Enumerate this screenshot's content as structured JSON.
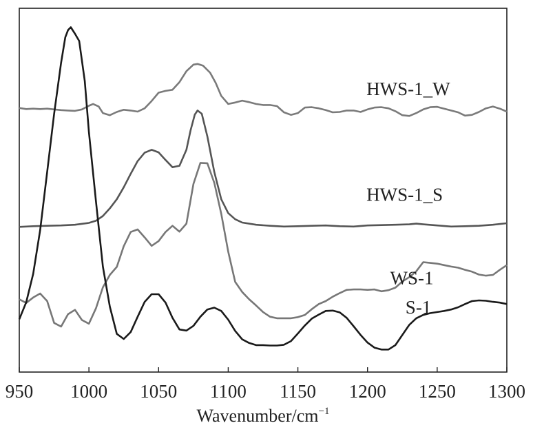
{
  "chart_data": {
    "type": "line",
    "xlabel": "Wavenumber/cm",
    "xlabel_superscript": "−1",
    "ylabel": "",
    "xlim": [
      950,
      1300
    ],
    "x_ticks": [
      950,
      1000,
      1050,
      1100,
      1150,
      1200,
      1250,
      1300
    ],
    "y_ticks": [],
    "grid": false,
    "legend": "none",
    "series": [
      {
        "name": "HWS-1_W",
        "color": "#7a7a7a",
        "label_at": [
          1045,
          0.78
        ],
        "points": [
          [
            950,
            0.726
          ],
          [
            955,
            0.723
          ],
          [
            960,
            0.724
          ],
          [
            965,
            0.723
          ],
          [
            970,
            0.724
          ],
          [
            975,
            0.722
          ],
          [
            980,
            0.72
          ],
          [
            985,
            0.719
          ],
          [
            990,
            0.718
          ],
          [
            995,
            0.722
          ],
          [
            1000,
            0.732
          ],
          [
            1003,
            0.737
          ],
          [
            1007,
            0.73
          ],
          [
            1010,
            0.712
          ],
          [
            1015,
            0.706
          ],
          [
            1020,
            0.715
          ],
          [
            1025,
            0.721
          ],
          [
            1030,
            0.719
          ],
          [
            1035,
            0.716
          ],
          [
            1040,
            0.725
          ],
          [
            1045,
            0.745
          ],
          [
            1050,
            0.768
          ],
          [
            1055,
            0.773
          ],
          [
            1060,
            0.776
          ],
          [
            1065,
            0.797
          ],
          [
            1070,
            0.827
          ],
          [
            1075,
            0.845
          ],
          [
            1078,
            0.847
          ],
          [
            1082,
            0.842
          ],
          [
            1087,
            0.823
          ],
          [
            1091,
            0.795
          ],
          [
            1095,
            0.759
          ],
          [
            1100,
            0.737
          ],
          [
            1105,
            0.741
          ],
          [
            1110,
            0.746
          ],
          [
            1115,
            0.742
          ],
          [
            1120,
            0.737
          ],
          [
            1125,
            0.734
          ],
          [
            1130,
            0.734
          ],
          [
            1135,
            0.731
          ],
          [
            1140,
            0.714
          ],
          [
            1145,
            0.707
          ],
          [
            1150,
            0.712
          ],
          [
            1155,
            0.727
          ],
          [
            1160,
            0.728
          ],
          [
            1165,
            0.725
          ],
          [
            1170,
            0.72
          ],
          [
            1175,
            0.714
          ],
          [
            1180,
            0.715
          ],
          [
            1185,
            0.719
          ],
          [
            1190,
            0.719
          ],
          [
            1195,
            0.715
          ],
          [
            1200,
            0.722
          ],
          [
            1205,
            0.727
          ],
          [
            1210,
            0.728
          ],
          [
            1215,
            0.725
          ],
          [
            1220,
            0.717
          ],
          [
            1225,
            0.706
          ],
          [
            1230,
            0.704
          ],
          [
            1235,
            0.712
          ],
          [
            1240,
            0.722
          ],
          [
            1245,
            0.728
          ],
          [
            1250,
            0.729
          ],
          [
            1255,
            0.724
          ],
          [
            1260,
            0.719
          ],
          [
            1265,
            0.714
          ],
          [
            1270,
            0.705
          ],
          [
            1275,
            0.707
          ],
          [
            1280,
            0.715
          ],
          [
            1285,
            0.725
          ],
          [
            1290,
            0.73
          ],
          [
            1295,
            0.724
          ],
          [
            1300,
            0.716
          ]
        ]
      },
      {
        "name": "HWS-1_S",
        "color": "#555555",
        "label_at": [
          1045,
          0.49
        ],
        "points": [
          [
            950,
            0.399
          ],
          [
            960,
            0.401
          ],
          [
            970,
            0.402
          ],
          [
            980,
            0.403
          ],
          [
            990,
            0.405
          ],
          [
            1000,
            0.41
          ],
          [
            1005,
            0.416
          ],
          [
            1010,
            0.429
          ],
          [
            1015,
            0.45
          ],
          [
            1020,
            0.475
          ],
          [
            1025,
            0.508
          ],
          [
            1030,
            0.545
          ],
          [
            1035,
            0.58
          ],
          [
            1040,
            0.603
          ],
          [
            1045,
            0.611
          ],
          [
            1050,
            0.604
          ],
          [
            1055,
            0.583
          ],
          [
            1060,
            0.563
          ],
          [
            1065,
            0.567
          ],
          [
            1070,
            0.611
          ],
          [
            1073,
            0.665
          ],
          [
            1076,
            0.708
          ],
          [
            1078,
            0.719
          ],
          [
            1081,
            0.71
          ],
          [
            1085,
            0.648
          ],
          [
            1090,
            0.55
          ],
          [
            1095,
            0.475
          ],
          [
            1100,
            0.437
          ],
          [
            1105,
            0.42
          ],
          [
            1110,
            0.411
          ],
          [
            1120,
            0.405
          ],
          [
            1130,
            0.402
          ],
          [
            1140,
            0.4
          ],
          [
            1150,
            0.401
          ],
          [
            1160,
            0.402
          ],
          [
            1170,
            0.403
          ],
          [
            1180,
            0.401
          ],
          [
            1190,
            0.4
          ],
          [
            1200,
            0.403
          ],
          [
            1210,
            0.404
          ],
          [
            1220,
            0.405
          ],
          [
            1230,
            0.406
          ],
          [
            1235,
            0.408
          ],
          [
            1240,
            0.406
          ],
          [
            1250,
            0.403
          ],
          [
            1260,
            0.4
          ],
          [
            1270,
            0.401
          ],
          [
            1280,
            0.402
          ],
          [
            1290,
            0.405
          ],
          [
            1300,
            0.409
          ]
        ]
      },
      {
        "name": "WS-1",
        "color": "#777777",
        "label_at": [
          1062,
          0.26
        ],
        "points": [
          [
            950,
            0.2
          ],
          [
            955,
            0.19
          ],
          [
            960,
            0.205
          ],
          [
            965,
            0.216
          ],
          [
            970,
            0.195
          ],
          [
            975,
            0.135
          ],
          [
            980,
            0.125
          ],
          [
            985,
            0.159
          ],
          [
            990,
            0.171
          ],
          [
            995,
            0.143
          ],
          [
            1000,
            0.133
          ],
          [
            1005,
            0.175
          ],
          [
            1010,
            0.233
          ],
          [
            1015,
            0.267
          ],
          [
            1020,
            0.289
          ],
          [
            1025,
            0.346
          ],
          [
            1030,
            0.385
          ],
          [
            1035,
            0.392
          ],
          [
            1040,
            0.37
          ],
          [
            1045,
            0.347
          ],
          [
            1050,
            0.36
          ],
          [
            1055,
            0.385
          ],
          [
            1060,
            0.402
          ],
          [
            1065,
            0.386
          ],
          [
            1070,
            0.408
          ],
          [
            1075,
            0.517
          ],
          [
            1080,
            0.575
          ],
          [
            1085,
            0.574
          ],
          [
            1090,
            0.52
          ],
          [
            1095,
            0.435
          ],
          [
            1100,
            0.331
          ],
          [
            1105,
            0.248
          ],
          [
            1110,
            0.22
          ],
          [
            1115,
            0.2
          ],
          [
            1120,
            0.183
          ],
          [
            1125,
            0.165
          ],
          [
            1130,
            0.152
          ],
          [
            1135,
            0.148
          ],
          [
            1140,
            0.148
          ],
          [
            1145,
            0.148
          ],
          [
            1150,
            0.151
          ],
          [
            1155,
            0.157
          ],
          [
            1160,
            0.173
          ],
          [
            1165,
            0.187
          ],
          [
            1170,
            0.195
          ],
          [
            1175,
            0.207
          ],
          [
            1180,
            0.217
          ],
          [
            1185,
            0.226
          ],
          [
            1190,
            0.227
          ],
          [
            1195,
            0.227
          ],
          [
            1200,
            0.226
          ],
          [
            1205,
            0.227
          ],
          [
            1210,
            0.222
          ],
          [
            1215,
            0.225
          ],
          [
            1220,
            0.232
          ],
          [
            1225,
            0.249
          ],
          [
            1230,
            0.261
          ],
          [
            1235,
            0.277
          ],
          [
            1240,
            0.302
          ],
          [
            1245,
            0.3
          ],
          [
            1250,
            0.298
          ],
          [
            1255,
            0.294
          ],
          [
            1260,
            0.29
          ],
          [
            1265,
            0.287
          ],
          [
            1270,
            0.281
          ],
          [
            1275,
            0.276
          ],
          [
            1280,
            0.268
          ],
          [
            1285,
            0.265
          ],
          [
            1290,
            0.267
          ],
          [
            1295,
            0.281
          ],
          [
            1300,
            0.294
          ]
        ]
      },
      {
        "name": "S-1",
        "color": "#1a1a1a",
        "label_at": [
          1073,
          0.18
        ],
        "points": [
          [
            950,
            0.145
          ],
          [
            955,
            0.192
          ],
          [
            960,
            0.27
          ],
          [
            965,
            0.39
          ],
          [
            970,
            0.55
          ],
          [
            975,
            0.71
          ],
          [
            980,
            0.85
          ],
          [
            983,
            0.92
          ],
          [
            985,
            0.94
          ],
          [
            987,
            0.948
          ],
          [
            990,
            0.93
          ],
          [
            993,
            0.91
          ],
          [
            997,
            0.8
          ],
          [
            1000,
            0.66
          ],
          [
            1005,
            0.47
          ],
          [
            1010,
            0.29
          ],
          [
            1015,
            0.18
          ],
          [
            1020,
            0.105
          ],
          [
            1025,
            0.091
          ],
          [
            1030,
            0.11
          ],
          [
            1035,
            0.152
          ],
          [
            1040,
            0.193
          ],
          [
            1045,
            0.214
          ],
          [
            1050,
            0.214
          ],
          [
            1055,
            0.191
          ],
          [
            1060,
            0.149
          ],
          [
            1065,
            0.117
          ],
          [
            1070,
            0.114
          ],
          [
            1075,
            0.127
          ],
          [
            1080,
            0.152
          ],
          [
            1085,
            0.172
          ],
          [
            1090,
            0.177
          ],
          [
            1095,
            0.168
          ],
          [
            1100,
            0.144
          ],
          [
            1105,
            0.113
          ],
          [
            1110,
            0.09
          ],
          [
            1115,
            0.08
          ],
          [
            1120,
            0.074
          ],
          [
            1125,
            0.074
          ],
          [
            1130,
            0.073
          ],
          [
            1135,
            0.073
          ],
          [
            1140,
            0.075
          ],
          [
            1145,
            0.085
          ],
          [
            1150,
            0.106
          ],
          [
            1155,
            0.128
          ],
          [
            1160,
            0.147
          ],
          [
            1165,
            0.158
          ],
          [
            1170,
            0.168
          ],
          [
            1175,
            0.169
          ],
          [
            1180,
            0.164
          ],
          [
            1185,
            0.149
          ],
          [
            1190,
            0.126
          ],
          [
            1195,
            0.102
          ],
          [
            1200,
            0.081
          ],
          [
            1205,
            0.067
          ],
          [
            1210,
            0.062
          ],
          [
            1215,
            0.062
          ],
          [
            1220,
            0.074
          ],
          [
            1225,
            0.102
          ],
          [
            1230,
            0.13
          ],
          [
            1235,
            0.148
          ],
          [
            1240,
            0.157
          ],
          [
            1245,
            0.162
          ],
          [
            1250,
            0.165
          ],
          [
            1255,
            0.168
          ],
          [
            1260,
            0.172
          ],
          [
            1265,
            0.178
          ],
          [
            1270,
            0.187
          ],
          [
            1275,
            0.195
          ],
          [
            1280,
            0.197
          ],
          [
            1285,
            0.196
          ],
          [
            1290,
            0.193
          ],
          [
            1295,
            0.191
          ],
          [
            1300,
            0.187
          ]
        ]
      }
    ]
  }
}
